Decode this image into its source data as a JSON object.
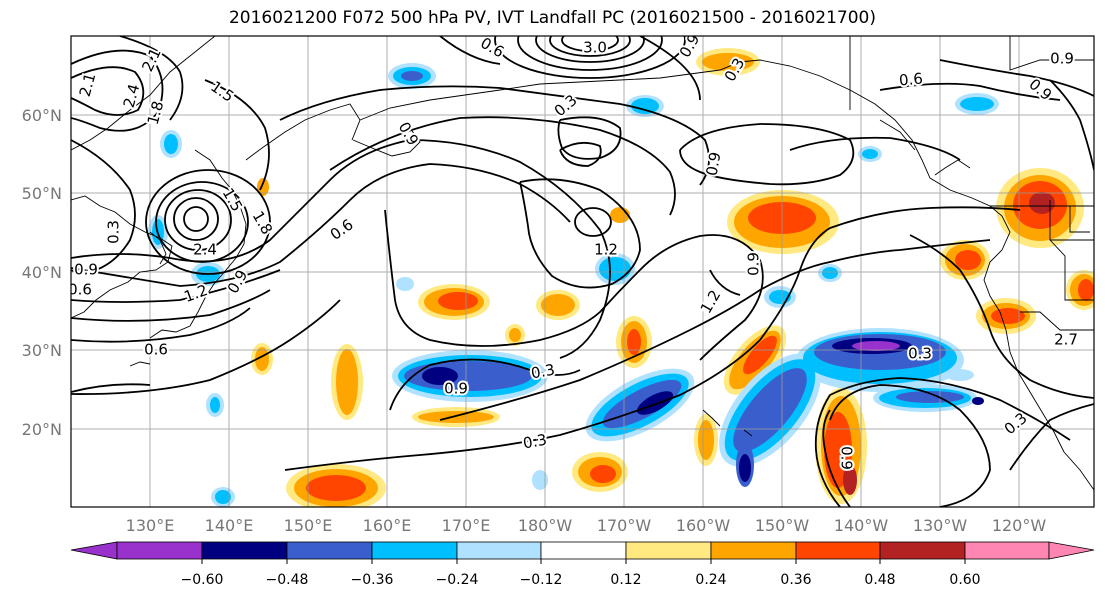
{
  "title": "2016021200 F072 500 hPa PV, IVT Landfall PC (2016021500 - 2016021700)",
  "lat_labels": [
    "60°N",
    "50°N",
    "40°N",
    "30°N",
    "20°N"
  ],
  "lon_labels": [
    "130°E",
    "140°E",
    "150°E",
    "160°E",
    "170°E",
    "180°W",
    "170°W",
    "160°W",
    "150°W",
    "140°W",
    "130°W",
    "120°W"
  ],
  "contour_labels": [
    "2.1",
    "2.4",
    "2.1",
    "1.8",
    "1.5",
    "0.6",
    "3.0",
    "0.9",
    "0.6",
    "0.9",
    "0.3",
    "0.9",
    "0.9",
    "0.9",
    "0.3",
    "0.9",
    "2.4",
    "1.5",
    "1.8",
    "0.9",
    "0.6",
    "1.2",
    "1.2",
    "0.9",
    "1.2",
    "0.9",
    "0.6",
    "0.3",
    "0.9",
    "0.3",
    "0.3",
    "0.3",
    "0.6",
    "0.3",
    "2.7"
  ],
  "colorbar": {
    "ticks": [
      "−0.60",
      "−0.48",
      "−0.36",
      "−0.24",
      "−0.12",
      "0.12",
      "0.24",
      "0.36",
      "0.48",
      "0.60"
    ],
    "colors": [
      "#9932cc",
      "#000080",
      "#3a5fcd",
      "#00bfff",
      "#b0e2ff",
      "#ffffff",
      "#ffe980",
      "#ffa500",
      "#ff4500",
      "#b22222",
      "#ff85b2"
    ]
  }
}
